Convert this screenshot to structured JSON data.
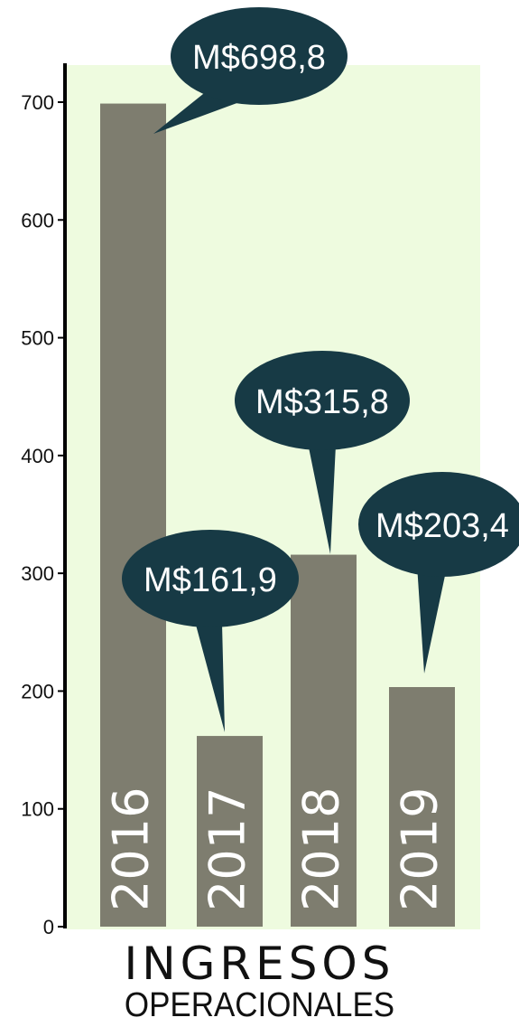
{
  "chart_data": {
    "type": "bar",
    "categories": [
      "2016",
      "2017",
      "2018",
      "2019"
    ],
    "values": [
      698.8,
      161.9,
      315.8,
      203.4
    ],
    "value_labels": [
      "M$698,8",
      "M$161,9",
      "M$315,8",
      "M$203,4"
    ],
    "ylim": [
      0,
      700
    ],
    "yticks": [
      0,
      100,
      200,
      300,
      400,
      500,
      600,
      700
    ],
    "grid": false,
    "legend": "none"
  },
  "title": {
    "line1": "INGRESOS",
    "line2": "OPERACIONALES"
  },
  "colors": {
    "plot_background": "#eefbdf",
    "bar": "#7e7d6f",
    "bubble": "#173a45",
    "bubble_text": "#ffffff",
    "axis": "#000000"
  }
}
